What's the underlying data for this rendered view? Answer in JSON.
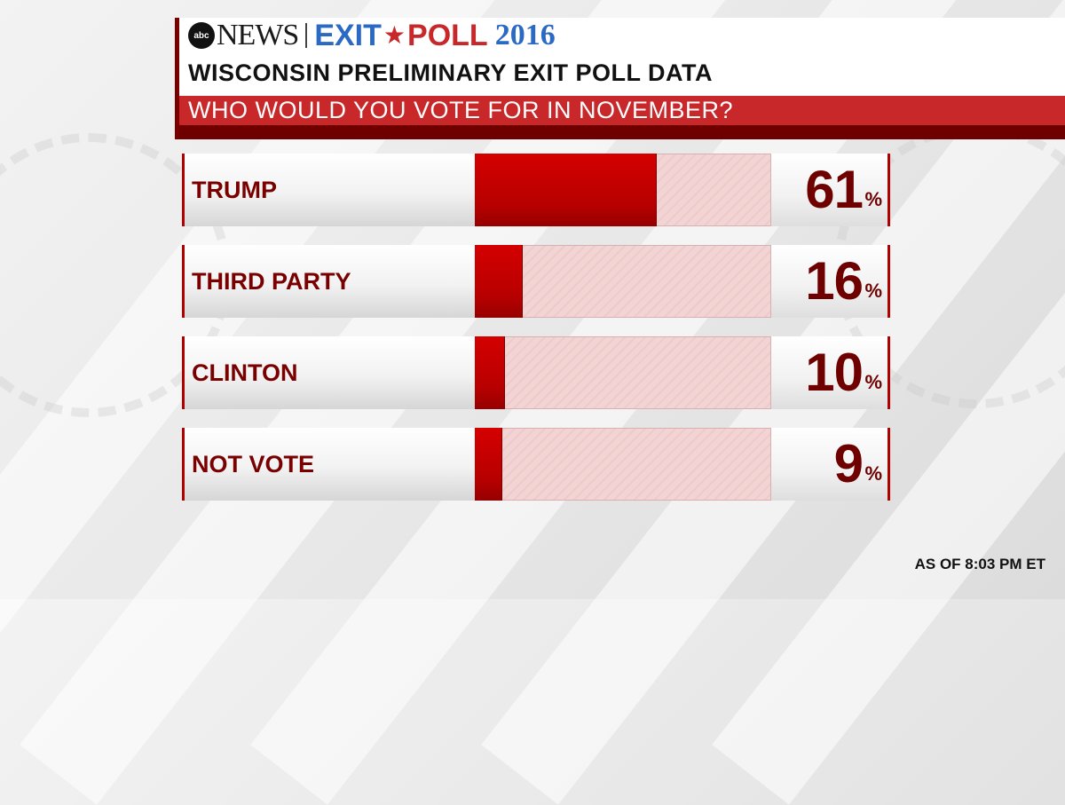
{
  "header": {
    "abc": "abc",
    "news": "NEWS",
    "exit": "EXIT",
    "poll": "POLL",
    "year": "2016",
    "title": "WISCONSIN PRELIMINARY EXIT POLL DATA",
    "subtitle": "WHO WOULD YOU VOTE FOR IN NOVEMBER?"
  },
  "footer": {
    "note": "AS OF 8:03 PM ET"
  },
  "percent_symbol": "%",
  "colors": {
    "bar": "#c40000",
    "track": "#f0cccc",
    "header_red": "#c8282a",
    "header_dark": "#6e0000",
    "blue": "#2a69c4"
  },
  "chart_data": {
    "type": "bar",
    "orientation": "horizontal",
    "title": "WHO WOULD YOU VOTE FOR IN NOVEMBER?",
    "categories": [
      "TRUMP",
      "THIRD PARTY",
      "CLINTON",
      "NOT VOTE"
    ],
    "values": [
      61,
      16,
      10,
      9
    ],
    "value_labels": [
      "61",
      "16",
      "10",
      "9"
    ],
    "unit": "%",
    "xlim": [
      0,
      100
    ],
    "grid": false,
    "legend": "none"
  }
}
